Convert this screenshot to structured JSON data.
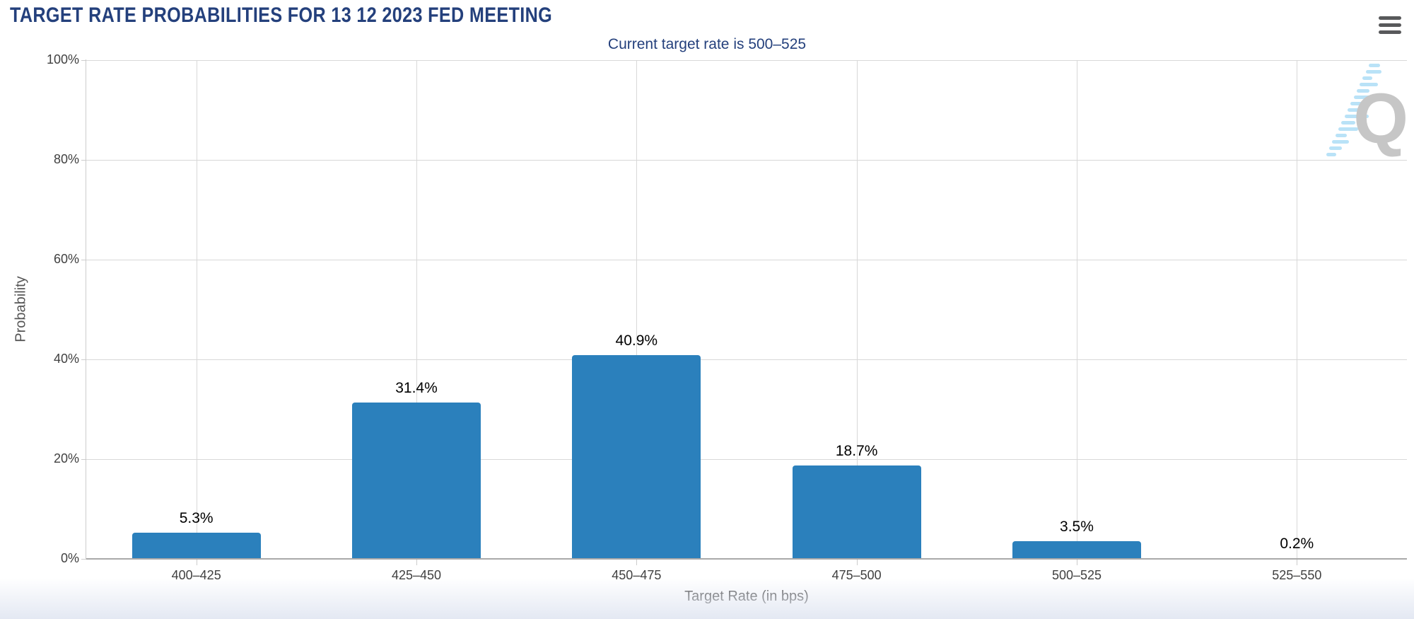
{
  "header": {
    "title": "TARGET RATE PROBABILITIES FOR 13 12 2023 FED MEETING",
    "menu_icon": "hamburger-icon"
  },
  "watermark": {
    "letter": "Q"
  },
  "chart_data": {
    "type": "bar",
    "title": "TARGET RATE PROBABILITIES FOR 13 12 2023 FED MEETING",
    "subtitle": "Current target rate is 500–525",
    "categories": [
      "400–425",
      "425–450",
      "450–475",
      "475–500",
      "500–525",
      "525–550"
    ],
    "values": [
      5.3,
      31.4,
      40.9,
      18.7,
      3.5,
      0.2
    ],
    "value_labels": [
      "5.3%",
      "31.4%",
      "40.9%",
      "18.7%",
      "3.5%",
      "0.2%"
    ],
    "xlabel": "Target Rate (in bps)",
    "ylabel": "Probability",
    "ylim": [
      0,
      100
    ],
    "yticks": [
      "0%",
      "20%",
      "40%",
      "60%",
      "80%",
      "100%"
    ],
    "grid": true,
    "legend": "none",
    "bar_color": "#2b80bc",
    "title_color": "#24407c",
    "grid_color": "#d8d8d8"
  }
}
